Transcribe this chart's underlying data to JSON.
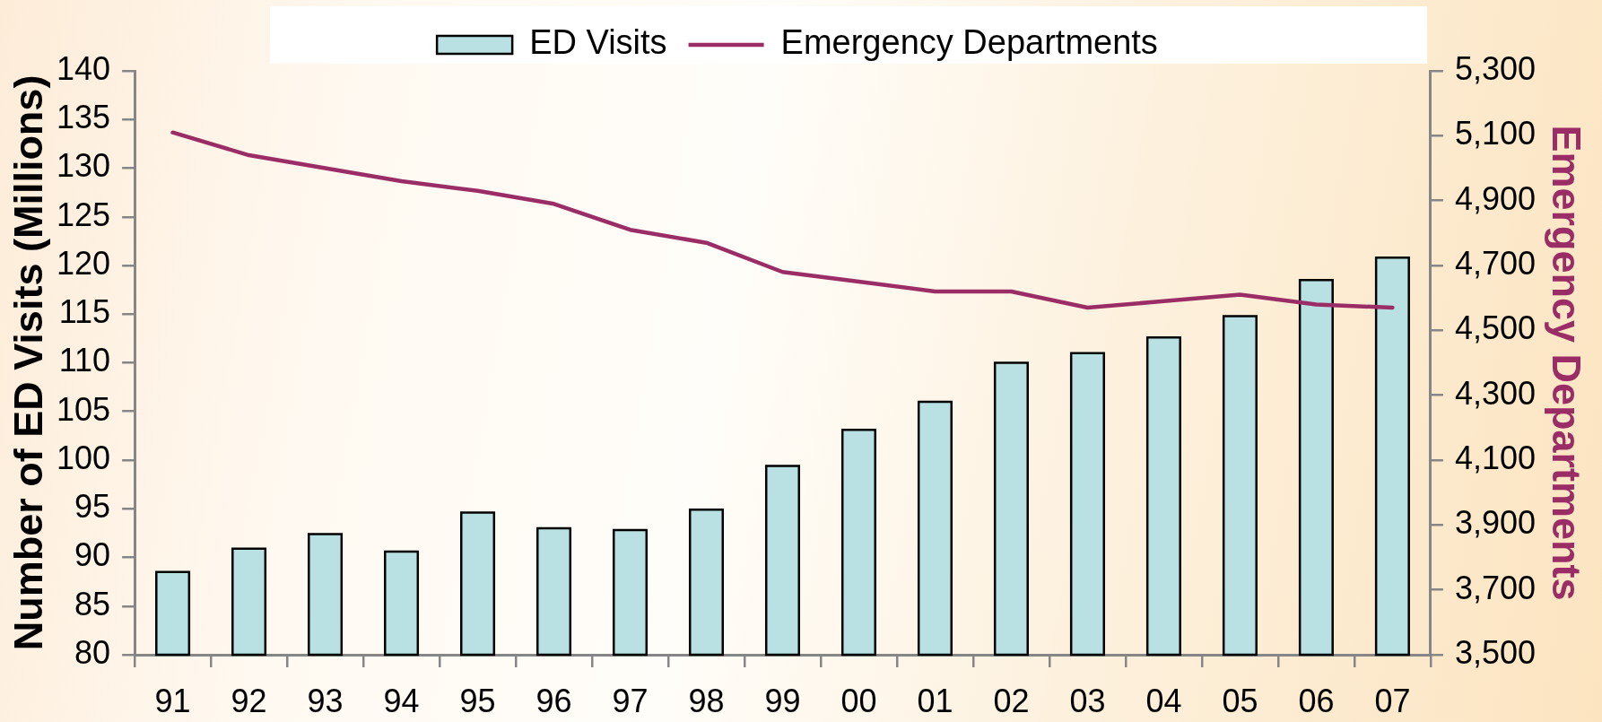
{
  "chart_data": {
    "type": "bar",
    "categories": [
      "91",
      "92",
      "93",
      "94",
      "95",
      "96",
      "97",
      "98",
      "99",
      "00",
      "01",
      "02",
      "03",
      "04",
      "05",
      "06",
      "07"
    ],
    "ylabel": "Number of ED Visits (Millions)",
    "y2label": "Emergency Departments",
    "series": [
      {
        "name": "ED Visits",
        "color": "#b9e0e3",
        "values": [
          88.5,
          90.9,
          92.4,
          90.6,
          94.6,
          93.0,
          92.8,
          94.9,
          99.4,
          103.1,
          106.0,
          110.0,
          111.0,
          112.6,
          114.8,
          118.5,
          120.8
        ]
      },
      {
        "name": "Emergency Departments",
        "type": "line",
        "axis": "y2",
        "color": "#9b2d66",
        "values": [
          5110,
          5040,
          5000,
          4960,
          4930,
          4890,
          4810,
          4770,
          4680,
          4650,
          4620,
          4620,
          4570,
          4590,
          4610,
          4580,
          4570
        ]
      }
    ],
    "ylim": [
      80,
      140
    ],
    "yticks": [
      80,
      85,
      90,
      95,
      100,
      105,
      110,
      115,
      120,
      125,
      130,
      135,
      140
    ],
    "y2lim": [
      3500,
      5300
    ],
    "y2ticks": [
      {
        "value": 3500,
        "label": "3,500"
      },
      {
        "value": 3700,
        "label": "3,700"
      },
      {
        "value": 3900,
        "label": "3,900"
      },
      {
        "value": 4100,
        "label": "4,100"
      },
      {
        "value": 4300,
        "label": "4,300"
      },
      {
        "value": 4500,
        "label": "4,500"
      },
      {
        "value": 4700,
        "label": "4,700"
      },
      {
        "value": 4900,
        "label": "4,900"
      },
      {
        "value": 5100,
        "label": "5,100"
      },
      {
        "value": 5300,
        "label": "5,300"
      }
    ],
    "legend": "top",
    "line_style": "solid"
  }
}
